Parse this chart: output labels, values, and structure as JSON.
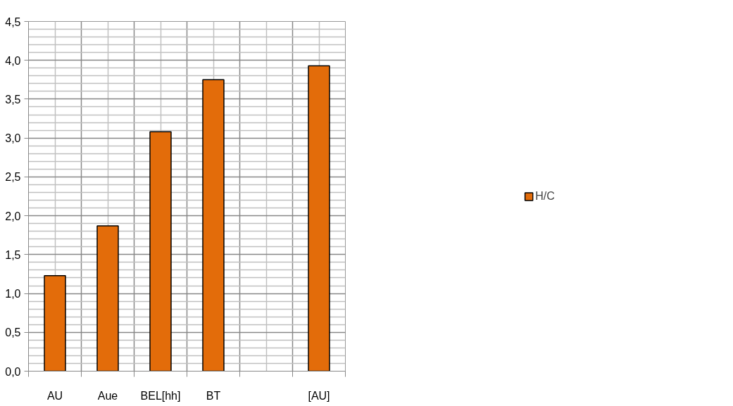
{
  "chart_data": {
    "type": "bar",
    "categories": [
      "AU",
      "Aue",
      "BEL[hh]",
      "BT",
      null,
      "[AU]"
    ],
    "series": [
      {
        "name": "H/C",
        "color": "#e36c0a",
        "values": [
          1.23,
          1.87,
          3.08,
          3.75,
          null,
          3.93
        ]
      }
    ],
    "ylim": [
      0,
      4.5
    ],
    "yticks": [
      {
        "value": 0,
        "label": "0,0"
      },
      {
        "value": 0.5,
        "label": "0,5"
      },
      {
        "value": 1,
        "label": "1,0"
      },
      {
        "value": 1.5,
        "label": "1,5"
      },
      {
        "value": 2,
        "label": "2,0"
      },
      {
        "value": 2.5,
        "label": "2,5"
      },
      {
        "value": 3,
        "label": "3,0"
      },
      {
        "value": 3.5,
        "label": "3,5"
      },
      {
        "value": 4,
        "label": "4,0"
      },
      {
        "value": 4.5,
        "label": "4,5"
      }
    ],
    "grid": true,
    "legend": "right"
  }
}
